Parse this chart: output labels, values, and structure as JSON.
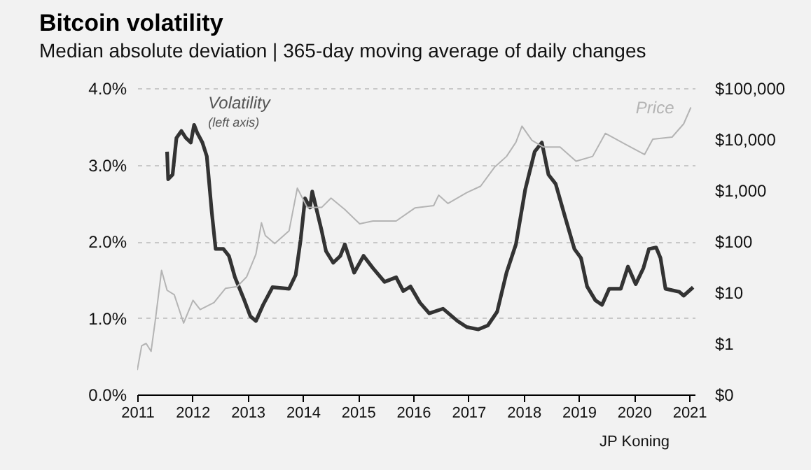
{
  "chart_data": {
    "type": "line",
    "title": "Bitcoin volatility",
    "subtitle": "Median absolute deviation | 365-day moving average of daily changes",
    "xlim": [
      2011,
      2021.1
    ],
    "xticks": [
      2011,
      2012,
      2013,
      2014,
      2015,
      2016,
      2017,
      2018,
      2019,
      2020,
      2021
    ],
    "ylim": [
      0,
      4
    ],
    "yticks": [
      {
        "value": 0,
        "label": "0.0%"
      },
      {
        "value": 1,
        "label": "1.0%"
      },
      {
        "value": 2,
        "label": "2.0%"
      },
      {
        "value": 3,
        "label": "3.0%"
      },
      {
        "value": 4,
        "label": "4.0%"
      }
    ],
    "y2lim": [
      0.1,
      100000
    ],
    "y2ticks": [
      {
        "value": 0.1,
        "label": "$0"
      },
      {
        "value": 1,
        "label": "$1"
      },
      {
        "value": 10,
        "label": "$10"
      },
      {
        "value": 100,
        "label": "$100"
      },
      {
        "value": 1000,
        "label": "$1,000"
      },
      {
        "value": 10000,
        "label": "$10,000"
      },
      {
        "value": 100000,
        "label": "$100,000"
      }
    ],
    "log": "y2",
    "grid": "y",
    "series": [
      {
        "name": "Volatility",
        "color": "#333333",
        "x": [
          2011.54,
          2011.56,
          2011.64,
          2011.71,
          2011.8,
          2011.88,
          2011.97,
          2012.03,
          2012.09,
          2012.18,
          2012.26,
          2012.35,
          2012.42,
          2012.56,
          2012.66,
          2012.77,
          2012.94,
          2013.05,
          2013.15,
          2013.28,
          2013.45,
          2013.75,
          2013.87,
          2013.96,
          2014.04,
          2014.13,
          2014.17,
          2014.34,
          2014.42,
          2014.55,
          2014.68,
          2014.76,
          2014.93,
          2015.1,
          2015.27,
          2015.48,
          2015.69,
          2015.82,
          2015.95,
          2016.12,
          2016.29,
          2016.54,
          2016.8,
          2016.97,
          2017.18,
          2017.35,
          2017.52,
          2017.69,
          2017.86,
          2018.03,
          2018.2,
          2018.33,
          2018.45,
          2018.58,
          2018.75,
          2018.92,
          2019.04,
          2019.15,
          2019.3,
          2019.42,
          2019.55,
          2019.76,
          2019.89,
          2020.03,
          2020.17,
          2020.27,
          2020.4,
          2020.48,
          2020.57,
          2020.82,
          2020.9,
          2021.07
        ],
        "values": [
          3.17,
          2.81,
          2.87,
          3.35,
          3.44,
          3.35,
          3.29,
          3.52,
          3.41,
          3.29,
          3.11,
          2.38,
          1.9,
          1.9,
          1.81,
          1.53,
          1.23,
          1.02,
          0.96,
          1.17,
          1.4,
          1.38,
          1.56,
          2.02,
          2.56,
          2.44,
          2.65,
          2.14,
          1.87,
          1.72,
          1.81,
          1.96,
          1.59,
          1.81,
          1.65,
          1.47,
          1.53,
          1.35,
          1.41,
          1.2,
          1.06,
          1.12,
          0.96,
          0.88,
          0.85,
          0.9,
          1.08,
          1.59,
          1.96,
          2.68,
          3.17,
          3.29,
          2.87,
          2.75,
          2.32,
          1.9,
          1.78,
          1.41,
          1.23,
          1.17,
          1.38,
          1.38,
          1.67,
          1.44,
          1.65,
          1.9,
          1.92,
          1.78,
          1.38,
          1.34,
          1.29,
          1.4
        ]
      },
      {
        "name": "Price",
        "color": "#b4b4b4",
        "axis": "y2",
        "x": [
          2011.0,
          2011.08,
          2011.16,
          2011.25,
          2011.33,
          2011.44,
          2011.54,
          2011.67,
          2011.84,
          2012.01,
          2012.14,
          2012.39,
          2012.6,
          2012.81,
          2012.98,
          2013.15,
          2013.25,
          2013.32,
          2013.49,
          2013.75,
          2013.9,
          2014.08,
          2014.34,
          2014.51,
          2014.76,
          2015.03,
          2015.27,
          2015.69,
          2016.03,
          2016.37,
          2016.46,
          2016.63,
          2016.97,
          2017.22,
          2017.47,
          2017.69,
          2017.86,
          2017.97,
          2018.15,
          2018.36,
          2018.66,
          2018.95,
          2019.25,
          2019.48,
          2019.84,
          2020.19,
          2020.34,
          2020.69,
          2020.9,
          2021.03
        ],
        "values": [
          0.3,
          0.9,
          1,
          0.7,
          3,
          27,
          11,
          9,
          2.5,
          7,
          4.6,
          6.3,
          12,
          13,
          20,
          56,
          230,
          130,
          90,
          160,
          1100,
          460,
          460,
          700,
          420,
          220,
          250,
          250,
          450,
          500,
          800,
          550,
          900,
          1200,
          2800,
          4600,
          8700,
          18000,
          9500,
          7000,
          7000,
          3700,
          4600,
          13000,
          8000,
          5000,
          10000,
          11000,
          20000,
          42000
        ]
      }
    ],
    "annotations": [
      "(left axis)",
      "JP Koning"
    ]
  }
}
